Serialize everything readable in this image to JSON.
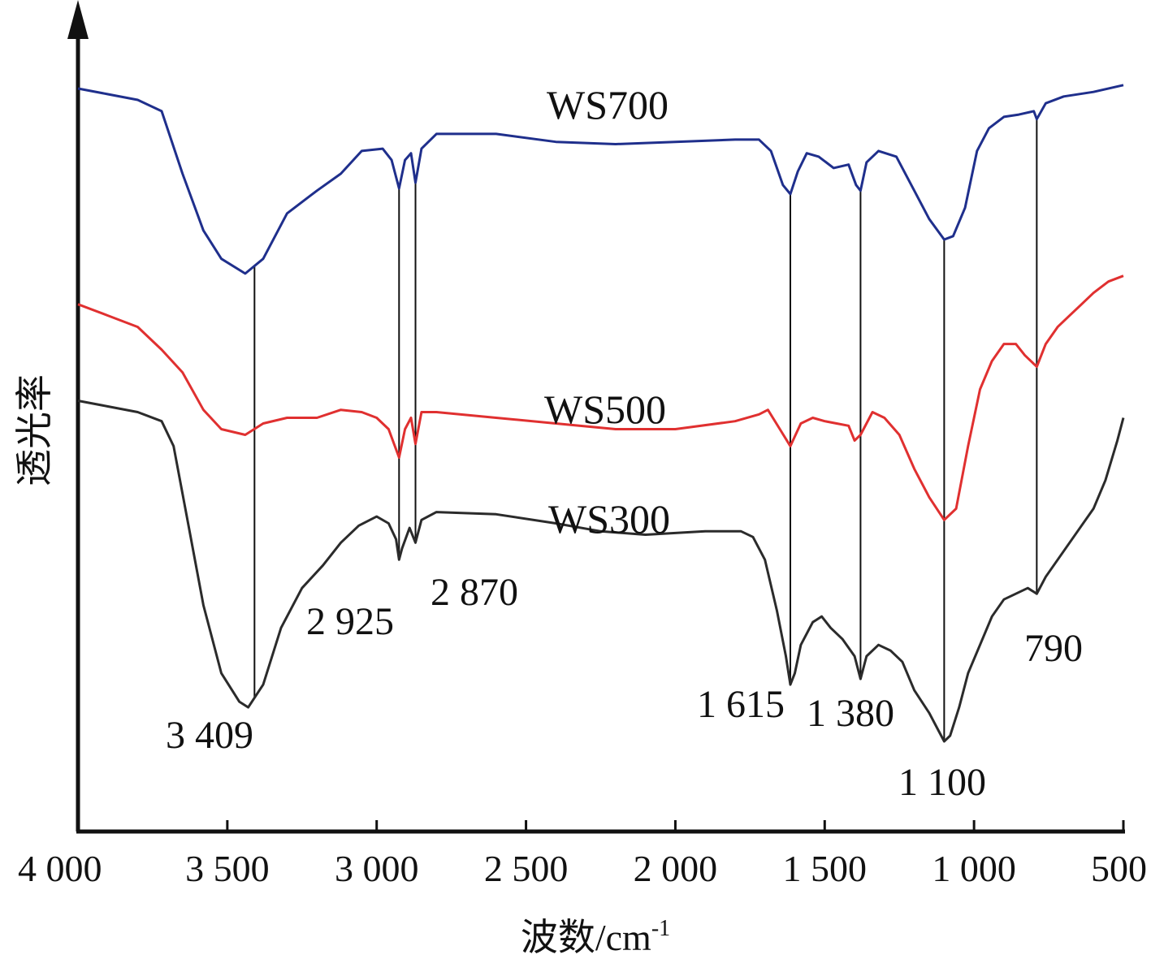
{
  "chart_data": {
    "type": "line",
    "title": "",
    "xlabel": "波数/cm",
    "xlabel_sup": "-1",
    "ylabel": "透光率",
    "x_reversed": true,
    "xlim": [
      4000,
      500
    ],
    "xticks": [
      4000,
      3500,
      3000,
      2500,
      2000,
      1500,
      1000,
      500
    ],
    "xtick_labels": [
      "4 000",
      "3 500",
      "3 000",
      "2 500",
      "2 000",
      "1 500",
      "1 000",
      "500"
    ],
    "y_units": "arbitrary (stacked transmittance)",
    "grid": false,
    "legend": "none (series labeled directly on curves)",
    "series": [
      {
        "name": "WS700",
        "color": "#1f2f8c",
        "points": [
          [
            4000,
            5.45
          ],
          [
            3900,
            5.4
          ],
          [
            3800,
            5.35
          ],
          [
            3720,
            5.25
          ],
          [
            3650,
            4.7
          ],
          [
            3580,
            4.2
          ],
          [
            3520,
            3.95
          ],
          [
            3440,
            3.82
          ],
          [
            3380,
            3.95
          ],
          [
            3300,
            4.35
          ],
          [
            3200,
            4.55
          ],
          [
            3120,
            4.7
          ],
          [
            3050,
            4.9
          ],
          [
            2980,
            4.92
          ],
          [
            2950,
            4.82
          ],
          [
            2925,
            4.57
          ],
          [
            2905,
            4.82
          ],
          [
            2885,
            4.88
          ],
          [
            2870,
            4.62
          ],
          [
            2850,
            4.92
          ],
          [
            2800,
            5.05
          ],
          [
            2600,
            5.05
          ],
          [
            2400,
            4.98
          ],
          [
            2200,
            4.96
          ],
          [
            2000,
            4.98
          ],
          [
            1800,
            5.0
          ],
          [
            1720,
            5.0
          ],
          [
            1680,
            4.9
          ],
          [
            1640,
            4.6
          ],
          [
            1615,
            4.52
          ],
          [
            1590,
            4.72
          ],
          [
            1560,
            4.88
          ],
          [
            1520,
            4.85
          ],
          [
            1470,
            4.75
          ],
          [
            1420,
            4.78
          ],
          [
            1395,
            4.6
          ],
          [
            1380,
            4.55
          ],
          [
            1360,
            4.8
          ],
          [
            1320,
            4.9
          ],
          [
            1260,
            4.85
          ],
          [
            1200,
            4.55
          ],
          [
            1150,
            4.3
          ],
          [
            1100,
            4.12
          ],
          [
            1070,
            4.15
          ],
          [
            1030,
            4.4
          ],
          [
            990,
            4.9
          ],
          [
            950,
            5.1
          ],
          [
            900,
            5.2
          ],
          [
            850,
            5.22
          ],
          [
            800,
            5.25
          ],
          [
            790,
            5.18
          ],
          [
            760,
            5.32
          ],
          [
            700,
            5.38
          ],
          [
            600,
            5.42
          ],
          [
            500,
            5.48
          ]
        ]
      },
      {
        "name": "WS500",
        "color": "#e03030",
        "points": [
          [
            4000,
            3.55
          ],
          [
            3900,
            3.45
          ],
          [
            3800,
            3.35
          ],
          [
            3720,
            3.15
          ],
          [
            3650,
            2.95
          ],
          [
            3580,
            2.62
          ],
          [
            3520,
            2.45
          ],
          [
            3440,
            2.4
          ],
          [
            3380,
            2.5
          ],
          [
            3300,
            2.55
          ],
          [
            3200,
            2.55
          ],
          [
            3120,
            2.62
          ],
          [
            3050,
            2.6
          ],
          [
            3000,
            2.55
          ],
          [
            2960,
            2.45
          ],
          [
            2925,
            2.2
          ],
          [
            2905,
            2.45
          ],
          [
            2885,
            2.55
          ],
          [
            2870,
            2.32
          ],
          [
            2850,
            2.6
          ],
          [
            2800,
            2.6
          ],
          [
            2600,
            2.55
          ],
          [
            2400,
            2.5
          ],
          [
            2200,
            2.45
          ],
          [
            2000,
            2.45
          ],
          [
            1800,
            2.52
          ],
          [
            1720,
            2.58
          ],
          [
            1690,
            2.62
          ],
          [
            1650,
            2.45
          ],
          [
            1615,
            2.3
          ],
          [
            1580,
            2.5
          ],
          [
            1540,
            2.55
          ],
          [
            1500,
            2.52
          ],
          [
            1460,
            2.5
          ],
          [
            1420,
            2.48
          ],
          [
            1400,
            2.35
          ],
          [
            1380,
            2.4
          ],
          [
            1340,
            2.6
          ],
          [
            1300,
            2.55
          ],
          [
            1250,
            2.4
          ],
          [
            1200,
            2.1
          ],
          [
            1150,
            1.85
          ],
          [
            1100,
            1.65
          ],
          [
            1060,
            1.75
          ],
          [
            1020,
            2.3
          ],
          [
            980,
            2.8
          ],
          [
            940,
            3.05
          ],
          [
            900,
            3.2
          ],
          [
            860,
            3.2
          ],
          [
            830,
            3.1
          ],
          [
            790,
            3.0
          ],
          [
            760,
            3.2
          ],
          [
            720,
            3.35
          ],
          [
            680,
            3.45
          ],
          [
            640,
            3.55
          ],
          [
            600,
            3.65
          ],
          [
            550,
            3.75
          ],
          [
            500,
            3.8
          ]
        ]
      },
      {
        "name": "WS300",
        "color": "#2b2b2b",
        "points": [
          [
            4000,
            2.7
          ],
          [
            3900,
            2.65
          ],
          [
            3800,
            2.6
          ],
          [
            3720,
            2.52
          ],
          [
            3680,
            2.3
          ],
          [
            3630,
            1.6
          ],
          [
            3580,
            0.9
          ],
          [
            3520,
            0.3
          ],
          [
            3460,
            0.05
          ],
          [
            3430,
            0.0
          ],
          [
            3380,
            0.2
          ],
          [
            3320,
            0.7
          ],
          [
            3250,
            1.05
          ],
          [
            3180,
            1.25
          ],
          [
            3120,
            1.45
          ],
          [
            3060,
            1.6
          ],
          [
            3000,
            1.68
          ],
          [
            2960,
            1.62
          ],
          [
            2935,
            1.48
          ],
          [
            2925,
            1.3
          ],
          [
            2915,
            1.4
          ],
          [
            2890,
            1.58
          ],
          [
            2870,
            1.45
          ],
          [
            2850,
            1.65
          ],
          [
            2800,
            1.72
          ],
          [
            2600,
            1.7
          ],
          [
            2400,
            1.62
          ],
          [
            2250,
            1.55
          ],
          [
            2100,
            1.52
          ],
          [
            1900,
            1.55
          ],
          [
            1780,
            1.55
          ],
          [
            1740,
            1.5
          ],
          [
            1700,
            1.3
          ],
          [
            1660,
            0.85
          ],
          [
            1630,
            0.45
          ],
          [
            1615,
            0.2
          ],
          [
            1600,
            0.3
          ],
          [
            1580,
            0.55
          ],
          [
            1540,
            0.75
          ],
          [
            1510,
            0.8
          ],
          [
            1480,
            0.7
          ],
          [
            1440,
            0.6
          ],
          [
            1400,
            0.45
          ],
          [
            1380,
            0.25
          ],
          [
            1360,
            0.45
          ],
          [
            1320,
            0.55
          ],
          [
            1280,
            0.5
          ],
          [
            1240,
            0.4
          ],
          [
            1200,
            0.15
          ],
          [
            1150,
            -0.05
          ],
          [
            1120,
            -0.2
          ],
          [
            1100,
            -0.3
          ],
          [
            1080,
            -0.25
          ],
          [
            1050,
            0.0
          ],
          [
            1020,
            0.3
          ],
          [
            980,
            0.55
          ],
          [
            940,
            0.8
          ],
          [
            900,
            0.95
          ],
          [
            860,
            1.0
          ],
          [
            820,
            1.05
          ],
          [
            790,
            1.0
          ],
          [
            760,
            1.15
          ],
          [
            720,
            1.3
          ],
          [
            680,
            1.45
          ],
          [
            640,
            1.6
          ],
          [
            600,
            1.75
          ],
          [
            560,
            2.0
          ],
          [
            520,
            2.35
          ],
          [
            500,
            2.55
          ]
        ]
      }
    ],
    "peak_markers": [
      {
        "x": 3409,
        "label": "3 409"
      },
      {
        "x": 2925,
        "label": "2 925"
      },
      {
        "x": 2870,
        "label": "2 870"
      },
      {
        "x": 1615,
        "label": "1 615"
      },
      {
        "x": 1380,
        "label": "1 380"
      },
      {
        "x": 1100,
        "label": "1 100"
      },
      {
        "x": 790,
        "label": "790"
      }
    ]
  }
}
